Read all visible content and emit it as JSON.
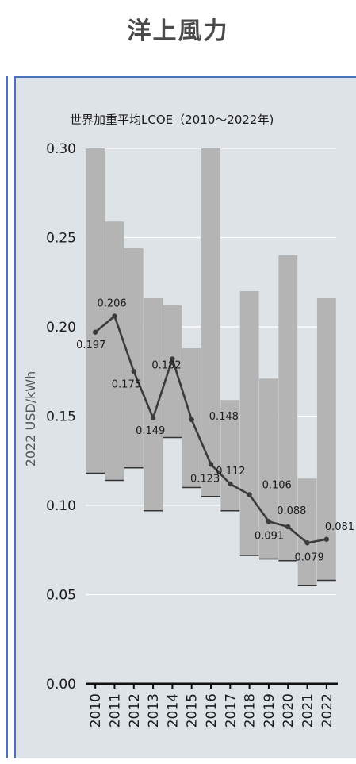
{
  "page": {
    "heading": "洋上風力"
  },
  "chart_data": {
    "type": "line",
    "title": "世界加重平均LCOE（2010〜2022年)",
    "ylabel": "2022 USD/kWh",
    "xlabel": "",
    "ylim": [
      0,
      0.3
    ],
    "yticks": [
      "0.00",
      "0.05",
      "0.10",
      "0.15",
      "0.20",
      "0.25",
      "0.30"
    ],
    "grid": true,
    "categories": [
      "2010",
      "2011",
      "2012",
      "2013",
      "2014",
      "2015",
      "2016",
      "2017",
      "2018",
      "2019",
      "2020",
      "2021",
      "2022"
    ],
    "series": [
      {
        "values": [
          0.197,
          0.206,
          0.175,
          0.149,
          0.182,
          0.148,
          0.123,
          0.112,
          0.106,
          0.091,
          0.088,
          0.079,
          0.081
        ],
        "labels": [
          "0.197",
          "0.206",
          "0.175",
          "0.149",
          "0.182",
          "0.148",
          "0.123",
          "0.112",
          "0.106",
          "0.091",
          "0.088",
          "0.079",
          "0.081"
        ]
      }
    ],
    "ranges": [
      {
        "low": 0.118,
        "high": 0.3
      },
      {
        "low": 0.114,
        "high": 0.259
      },
      {
        "low": 0.121,
        "high": 0.244
      },
      {
        "low": 0.097,
        "high": 0.216
      },
      {
        "low": 0.138,
        "high": 0.212
      },
      {
        "low": 0.11,
        "high": 0.188
      },
      {
        "low": 0.105,
        "high": 0.3
      },
      {
        "low": 0.097,
        "high": 0.159
      },
      {
        "low": 0.072,
        "high": 0.22
      },
      {
        "low": 0.07,
        "high": 0.171
      },
      {
        "low": 0.069,
        "high": 0.24
      },
      {
        "low": 0.055,
        "high": 0.115
      },
      {
        "low": 0.058,
        "high": 0.216
      }
    ],
    "colors": {
      "range_bar": "#b4b4b4",
      "range_cap": "#333333",
      "line": "#3b3b3b",
      "background": "#dde3e6"
    }
  }
}
